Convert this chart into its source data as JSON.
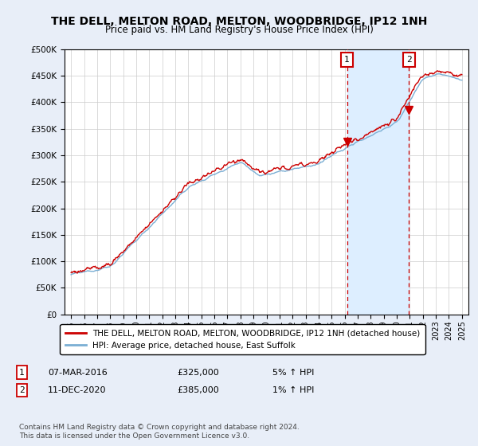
{
  "title": "THE DELL, MELTON ROAD, MELTON, WOODBRIDGE, IP12 1NH",
  "subtitle": "Price paid vs. HM Land Registry's House Price Index (HPI)",
  "ylabel_ticks": [
    "£0",
    "£50K",
    "£100K",
    "£150K",
    "£200K",
    "£250K",
    "£300K",
    "£350K",
    "£400K",
    "£450K",
    "£500K"
  ],
  "ytick_values": [
    0,
    50000,
    100000,
    150000,
    200000,
    250000,
    300000,
    350000,
    400000,
    450000,
    500000
  ],
  "ylim": [
    0,
    500000
  ],
  "xlim_start": 1994.5,
  "xlim_end": 2025.5,
  "hpi_color": "#7bafd4",
  "price_color": "#cc0000",
  "shade_color": "#ddeeff",
  "marker1_x": 2016.18,
  "marker1_y": 325000,
  "marker2_x": 2020.94,
  "marker2_y": 385000,
  "annotation1_label": "1",
  "annotation2_label": "2",
  "legend_label1": "THE DELL, MELTON ROAD, MELTON, WOODBRIDGE, IP12 1NH (detached house)",
  "legend_label2": "HPI: Average price, detached house, East Suffolk",
  "footnote": "Contains HM Land Registry data © Crown copyright and database right 2024.\nThis data is licensed under the Open Government Licence v3.0.",
  "background_color": "#e8eef8",
  "plot_bg_color": "#ffffff",
  "grid_color": "#cccccc",
  "title_fontsize": 10,
  "subtitle_fontsize": 9
}
